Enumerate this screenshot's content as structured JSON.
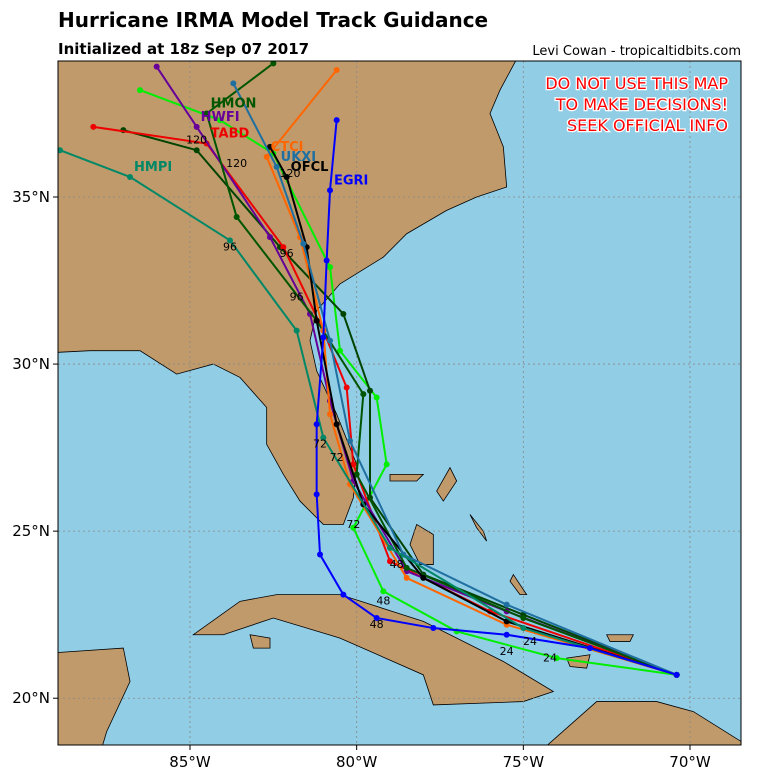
{
  "header": {
    "title": "Hurricane IRMA Model Track Guidance",
    "subtitle": "Initialized at 18z Sep 07 2017",
    "credit": "Levi Cowan - tropicaltidbits.com"
  },
  "warning": [
    "DO NOT USE THIS MAP",
    "TO MAKE DECISIONS!",
    "SEEK OFFICIAL INFO"
  ],
  "map": {
    "xlim": [
      -88.96,
      -68.47
    ],
    "ylim": [
      18.6,
      39.07
    ],
    "lat_ticks": [
      {
        "value": 35,
        "label": "35°N"
      },
      {
        "value": 30,
        "label": "30°N"
      },
      {
        "value": 25,
        "label": "25°N"
      },
      {
        "value": 20,
        "label": "20°N"
      }
    ],
    "lon_ticks": [
      {
        "value": -85,
        "label": "85°W"
      },
      {
        "value": -80,
        "label": "80°W"
      },
      {
        "value": -75,
        "label": "75°W"
      },
      {
        "value": -70,
        "label": "70°W"
      }
    ],
    "grid": true,
    "tracks": [
      {
        "color": "#00ee00",
        "lon": [
          -70.4,
          -74.0,
          -77.0,
          -79.2,
          -80.1,
          -79.1,
          -79.4,
          -80.5,
          -80.8,
          -82.5,
          -84.1,
          -86.5
        ],
        "lat": [
          20.7,
          21.2,
          22.0,
          23.2,
          25.1,
          27.0,
          29.0,
          30.4,
          32.9,
          36.3,
          37.3,
          38.2
        ]
      },
      {
        "color": "#004400",
        "lon": [
          -70.4,
          -75.0,
          -78.0,
          -79.6,
          -79.6,
          -80.4,
          -82.3,
          -84.8,
          -87.0
        ],
        "lat": [
          20.7,
          22.5,
          23.7,
          26.0,
          29.2,
          31.5,
          33.5,
          36.4,
          37.0
        ]
      },
      {
        "name": "TABD",
        "color": "#ee0000",
        "lon": [
          -70.4,
          -76.0,
          -79.0,
          -80.1,
          -80.3,
          -81.0,
          -82.2,
          -84.5,
          -87.9
        ],
        "lat": [
          20.7,
          22.6,
          24.1,
          27.0,
          29.3,
          31.0,
          33.5,
          36.6,
          37.1
        ]
      },
      {
        "name": "HWFI",
        "color": "#660099",
        "lon": [
          -70.4,
          -75.5,
          -78.5,
          -80.1,
          -80.8,
          -81.4,
          -82.6,
          -84.8,
          -86.0
        ],
        "lat": [
          20.7,
          22.6,
          23.8,
          26.5,
          28.9,
          31.5,
          33.8,
          37.1,
          38.9
        ]
      },
      {
        "name": "HMON",
        "color": "#005500",
        "lon": [
          -70.4,
          -75.0,
          -78.5,
          -80.0,
          -79.8,
          -81.2,
          -83.6,
          -84.5,
          -82.5
        ],
        "lat": [
          20.7,
          22.4,
          23.9,
          26.7,
          29.1,
          31.3,
          34.4,
          37.5,
          39.0
        ]
      },
      {
        "name": "CTCI",
        "color": "#ff6600",
        "lon": [
          -70.4,
          -75.5,
          -78.5,
          -80.2,
          -80.8,
          -81.0,
          -81.7,
          -82.7,
          -80.6
        ],
        "lat": [
          20.7,
          22.2,
          23.6,
          26.4,
          28.5,
          31.0,
          33.8,
          36.2,
          38.8
        ]
      },
      {
        "name": "OFCL",
        "color": "#000000",
        "lon": [
          -70.4,
          -75.5,
          -78.0,
          -79.8,
          -80.6,
          -81.2,
          -81.5,
          -82.1,
          -82.6
        ],
        "lat": [
          20.7,
          22.3,
          23.6,
          25.8,
          28.2,
          31.3,
          33.5,
          35.6,
          36.5
        ]
      },
      {
        "name": "UKXI",
        "color": "#1f6fa0",
        "lon": [
          -70.4,
          -75.5,
          -78.6,
          -80.2,
          -80.8,
          -81.6,
          -82.4,
          -83.7
        ],
        "lat": [
          20.7,
          22.8,
          24.3,
          27.7,
          30.7,
          33.6,
          35.9,
          38.4
        ]
      },
      {
        "name": "HMPI",
        "color": "#008866",
        "lon": [
          -70.4,
          -75.0,
          -79.0,
          -81.0,
          -81.8,
          -83.8,
          -86.8,
          -88.9
        ],
        "lat": [
          20.7,
          22.1,
          24.5,
          27.8,
          31.0,
          33.7,
          35.6,
          36.4
        ]
      },
      {
        "name": "EGRI",
        "color": "#0000ff",
        "lon": [
          -70.4,
          -73.0,
          -75.5,
          -77.7,
          -79.4,
          -80.4,
          -81.1,
          -81.2,
          -81.2,
          -81.0,
          -80.9,
          -80.8,
          -80.6
        ],
        "lat": [
          20.7,
          21.5,
          21.9,
          22.1,
          22.4,
          23.1,
          24.3,
          26.1,
          28.2,
          30.8,
          33.1,
          35.2,
          37.3
        ]
      }
    ],
    "hour_labels": [
      {
        "label": "120",
        "lon": -84.8,
        "lat": 36.6
      },
      {
        "label": "120",
        "lon": -83.6,
        "lat": 35.9
      },
      {
        "label": "120",
        "lon": -82.0,
        "lat": 35.6
      },
      {
        "label": "96",
        "lon": -83.8,
        "lat": 33.4
      },
      {
        "label": "96",
        "lon": -82.1,
        "lat": 33.2
      },
      {
        "label": "96",
        "lon": -81.8,
        "lat": 31.9
      },
      {
        "label": "72",
        "lon": -80.6,
        "lat": 27.1
      },
      {
        "label": "72",
        "lon": -81.1,
        "lat": 27.5
      },
      {
        "label": "72",
        "lon": -80.1,
        "lat": 25.1
      },
      {
        "label": "48",
        "lon": -78.8,
        "lat": 23.9
      },
      {
        "label": "48",
        "lon": -79.4,
        "lat": 22.1
      },
      {
        "label": "48",
        "lon": -79.2,
        "lat": 22.8
      },
      {
        "label": "24",
        "lon": -75.5,
        "lat": 21.3
      },
      {
        "label": "24",
        "lon": -74.8,
        "lat": 21.6
      },
      {
        "label": "24",
        "lon": -74.2,
        "lat": 21.1
      }
    ]
  }
}
